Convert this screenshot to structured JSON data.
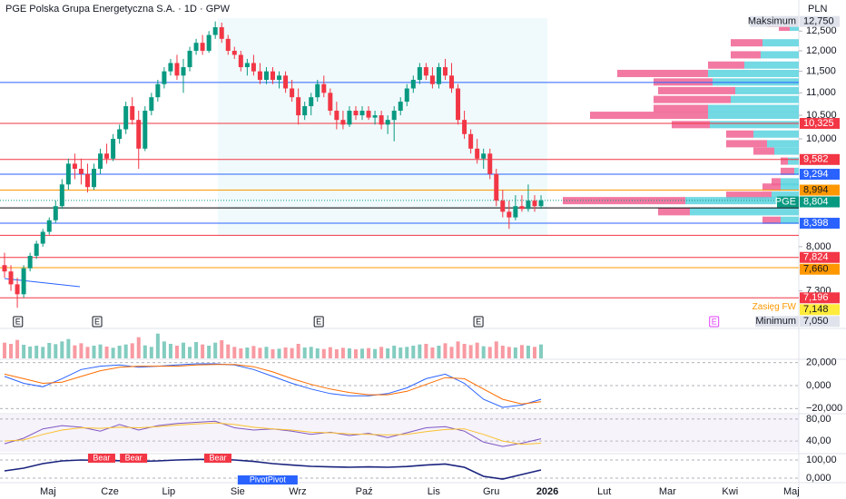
{
  "chart_data": {
    "type": "candlestick",
    "title": "PGE Polska Grupa Energetyczna S.A. · 1D · GPW",
    "currency": "PLN",
    "log_scale": true,
    "up_color": "#089981",
    "down_color": "#f23645",
    "xlim": [
      -0.71,
      124.36
    ],
    "xticks": [
      {
        "value": 6.8,
        "label": "Maj"
      },
      {
        "value": 16.5,
        "label": "Cze"
      },
      {
        "value": 25.7,
        "label": "Lip"
      },
      {
        "value": 36.5,
        "label": "Sie"
      },
      {
        "value": 45.9,
        "label": "Wrz"
      },
      {
        "value": 56.3,
        "label": "Paź"
      },
      {
        "value": 67.2,
        "label": "Lis"
      },
      {
        "value": 76.2,
        "label": "Gru"
      },
      {
        "value": 85,
        "label": "2026"
      },
      {
        "value": 93.9,
        "label": "Lut"
      },
      {
        "value": 103.8,
        "label": "Mar"
      },
      {
        "value": 113.6,
        "label": "Kwi"
      },
      {
        "value": 123.2,
        "label": "Maj"
      }
    ],
    "ylim": [
      6780,
      12960
    ],
    "yticks": [
      {
        "value": 12500,
        "label": "12,500"
      },
      {
        "value": 12000,
        "label": "12,000"
      },
      {
        "value": 11500,
        "label": "11,500"
      },
      {
        "value": 11000,
        "label": "11,000"
      },
      {
        "value": 10500,
        "label": "10,500"
      },
      {
        "value": 10000,
        "label": "10,000"
      },
      {
        "value": 8000,
        "label": "8,000"
      },
      {
        "value": 7300,
        "label": "7,300"
      }
    ],
    "ohlc": [
      [
        7700,
        7900,
        7500,
        7600
      ],
      [
        7600,
        7700,
        7300,
        7400
      ],
      [
        7400,
        7500,
        7050,
        7250
      ],
      [
        7250,
        7700,
        7200,
        7650
      ],
      [
        7650,
        7900,
        7600,
        7850
      ],
      [
        7850,
        8100,
        7800,
        8050
      ],
      [
        8050,
        8300,
        8000,
        8250
      ],
      [
        8250,
        8500,
        8200,
        8450
      ],
      [
        8450,
        8800,
        8400,
        8700
      ],
      [
        8700,
        9200,
        8650,
        9100
      ],
      [
        9100,
        9600,
        9000,
        9500
      ],
      [
        9500,
        9700,
        9200,
        9400
      ],
      [
        9400,
        9600,
        9100,
        9300
      ],
      [
        9300,
        9500,
        8950,
        9050
      ],
      [
        9050,
        9500,
        9000,
        9400
      ],
      [
        9400,
        9800,
        9300,
        9700
      ],
      [
        9700,
        9900,
        9500,
        9600
      ],
      [
        9600,
        10100,
        9550,
        10000
      ],
      [
        10000,
        10300,
        9900,
        10200
      ],
      [
        10200,
        10800,
        10100,
        10700
      ],
      [
        10700,
        10900,
        10300,
        10400
      ],
      [
        10400,
        10600,
        9400,
        9800
      ],
      [
        9800,
        10700,
        9750,
        10600
      ],
      [
        10600,
        11000,
        10500,
        10900
      ],
      [
        10900,
        11300,
        10800,
        11200
      ],
      [
        11200,
        11600,
        11100,
        11500
      ],
      [
        11500,
        11800,
        11400,
        11700
      ],
      [
        11700,
        11900,
        11300,
        11400
      ],
      [
        11400,
        11800,
        11000,
        11600
      ],
      [
        11600,
        12100,
        11500,
        12000
      ],
      [
        12000,
        12300,
        11900,
        12200
      ],
      [
        12200,
        12400,
        11900,
        12000
      ],
      [
        12000,
        12500,
        11950,
        12400
      ],
      [
        12400,
        12750,
        12300,
        12600
      ],
      [
        12600,
        12720,
        12200,
        12300
      ],
      [
        12300,
        12400,
        11900,
        12000
      ],
      [
        12000,
        12100,
        11800,
        11900
      ],
      [
        11900,
        12000,
        11500,
        11600
      ],
      [
        11600,
        11800,
        11400,
        11700
      ],
      [
        11700,
        11900,
        11400,
        11500
      ],
      [
        11500,
        11700,
        11200,
        11300
      ],
      [
        11300,
        11600,
        11200,
        11500
      ],
      [
        11500,
        11600,
        11200,
        11300
      ],
      [
        11300,
        11500,
        11100,
        11400
      ],
      [
        11400,
        11500,
        11000,
        11100
      ],
      [
        11100,
        11300,
        10800,
        10900
      ],
      [
        10900,
        11100,
        10300,
        10500
      ],
      [
        10500,
        10800,
        10400,
        10700
      ],
      [
        10700,
        11000,
        10500,
        10900
      ],
      [
        10900,
        11300,
        10800,
        11200
      ],
      [
        11200,
        11400,
        10900,
        11000
      ],
      [
        11000,
        11100,
        10500,
        10600
      ],
      [
        10600,
        10800,
        10200,
        10400
      ],
      [
        10400,
        10600,
        10200,
        10300
      ],
      [
        10300,
        10700,
        10250,
        10600
      ],
      [
        10600,
        10700,
        10400,
        10500
      ],
      [
        10500,
        10700,
        10400,
        10600
      ],
      [
        10600,
        10700,
        10400,
        10450
      ],
      [
        10450,
        10600,
        10300,
        10500
      ],
      [
        10500,
        10600,
        10200,
        10300
      ],
      [
        10300,
        10500,
        10100,
        10400
      ],
      [
        10400,
        10700,
        9950,
        10600
      ],
      [
        10600,
        10900,
        10500,
        10800
      ],
      [
        10800,
        11200,
        10700,
        11100
      ],
      [
        11100,
        11400,
        11000,
        11300
      ],
      [
        11300,
        11700,
        11200,
        11600
      ],
      [
        11600,
        11700,
        11300,
        11400
      ],
      [
        11400,
        11600,
        11100,
        11200
      ],
      [
        11200,
        11700,
        11100,
        11600
      ],
      [
        11600,
        11800,
        11300,
        11400
      ],
      [
        11400,
        11700,
        11000,
        11100
      ],
      [
        11100,
        11200,
        10300,
        10400
      ],
      [
        10400,
        10600,
        10000,
        10100
      ],
      [
        10100,
        10200,
        9700,
        9800
      ],
      [
        9800,
        10000,
        9500,
        9600
      ],
      [
        9600,
        9800,
        9400,
        9700
      ],
      [
        9700,
        9800,
        9200,
        9300
      ],
      [
        9300,
        9400,
        8700,
        8800
      ],
      [
        8800,
        9000,
        8500,
        8600
      ],
      [
        8600,
        8800,
        8300,
        8500
      ],
      [
        8500,
        8900,
        8450,
        8700
      ],
      [
        8700,
        8900,
        8600,
        8650
      ],
      [
        8650,
        9100,
        8600,
        8800
      ],
      [
        8800,
        8900,
        8600,
        8700
      ],
      [
        8700,
        8900,
        8650,
        8804
      ]
    ],
    "levels": [
      {
        "value": 12750,
        "label": "12,750",
        "tag": "Maksimum",
        "color": "#e0e3eb"
      },
      {
        "value": 11240,
        "color": "#2962ff",
        "line_style": "solid"
      },
      {
        "value": 10325,
        "label": "10,325",
        "color": "#f23645",
        "line_style": "solid"
      },
      {
        "value": 9582,
        "label": "9,582",
        "color": "#f23645",
        "line_style": "solid"
      },
      {
        "value": 9294,
        "label": "9,294",
        "color": "#2962ff",
        "line_style": "solid"
      },
      {
        "value": 8994,
        "label": "8,994",
        "color": "#ff9800",
        "line_style": "solid"
      },
      {
        "value": 8804,
        "label": "8,804",
        "tag": "PGE",
        "color": "#089981",
        "line_style": "dotted"
      },
      {
        "value": 8670,
        "color": "#000000",
        "line_style": "solid"
      },
      {
        "value": 8398,
        "label": "8,398",
        "color": "#2962ff",
        "line_style": "solid"
      },
      {
        "value": 8190,
        "color": "#f23645",
        "line_style": "solid"
      },
      {
        "value": 7824,
        "label": "7,824",
        "color": "#f23645",
        "line_style": "solid"
      },
      {
        "value": 7660,
        "label": "7,660",
        "color": "#ff9800",
        "line_style": "solid"
      },
      {
        "value": 7196,
        "label": "7,196",
        "color": "#f23645",
        "line_style": "solid"
      },
      {
        "value": 7148,
        "label": "7,148",
        "tag": "Zasięg FW",
        "color": "#ffeb3b"
      },
      {
        "value": 7050,
        "label": "7,050",
        "tag": "Minimum",
        "color": "#e0e3eb"
      }
    ],
    "earnings": [
      {
        "x": 2.1,
        "label": "E"
      },
      {
        "x": 14.5,
        "label": "E"
      },
      {
        "x": 49.2,
        "label": "E"
      },
      {
        "x": 74.2,
        "label": "E"
      },
      {
        "x": 111.1,
        "label": "E",
        "upcoming": true
      }
    ],
    "volume_profile": {
      "up_color": "#5ad2de",
      "down_color": "#f06292",
      "xlim": [
        0,
        260
      ],
      "prices": [
        12700,
        12600,
        12200,
        11900,
        11650,
        11450,
        11250,
        11050,
        10850,
        10650,
        10500,
        10300,
        10100,
        9900,
        9750,
        9550,
        9350,
        9150,
        9050,
        8900,
        8800,
        8600,
        8450
      ],
      "up": [
        18,
        10,
        40,
        42,
        60,
        100,
        95,
        70,
        75,
        100,
        100,
        98,
        50,
        35,
        27,
        12,
        5,
        20,
        20,
        30,
        125,
        120,
        20
      ],
      "down": [
        17,
        12,
        35,
        33,
        40,
        100,
        65,
        85,
        85,
        60,
        130,
        42,
        30,
        45,
        23,
        8,
        15,
        10,
        20,
        50,
        135,
        35,
        20
      ]
    },
    "volume": {
      "ylim": [
        0,
        900
      ],
      "values": [
        520,
        480,
        610,
        450,
        390,
        420,
        380,
        510,
        470,
        560,
        640,
        430,
        500,
        380,
        420,
        460,
        390,
        350,
        420,
        460,
        500,
        700,
        430,
        380,
        820,
        560,
        480,
        420,
        520,
        380,
        540,
        460,
        420,
        520,
        600,
        460,
        380,
        330,
        360,
        410,
        350,
        380,
        300,
        320,
        360,
        340,
        480,
        360,
        380,
        330,
        310,
        370,
        300,
        350,
        330,
        300,
        320,
        340,
        310,
        380,
        330,
        420,
        360,
        380,
        420,
        460,
        480,
        360,
        420,
        500,
        380,
        560,
        480,
        440,
        520,
        400,
        380,
        560,
        420,
        380,
        360,
        440,
        420,
        380,
        460
      ]
    },
    "macd": {
      "ylim": [
        -23000,
        23000
      ],
      "yticks": [
        {
          "value": 20000,
          "label": "20,000"
        },
        {
          "value": 0,
          "label": "0,000"
        },
        {
          "value": -20000,
          "label": "−20,000"
        }
      ],
      "x": [
        0,
        3,
        6,
        9,
        12,
        15,
        18,
        21,
        24,
        27,
        30,
        33,
        36,
        39,
        42,
        45,
        48,
        51,
        54,
        57,
        60,
        63,
        66,
        69,
        72,
        75,
        78,
        81,
        84
      ],
      "series": [
        {
          "color": "#2962ff",
          "values": [
            8000,
            2000,
            -1000,
            6000,
            14000,
            17000,
            18000,
            16000,
            17000,
            18000,
            19000,
            19000,
            18000,
            14000,
            8000,
            2000,
            -3000,
            -7000,
            -9000,
            -9000,
            -7000,
            -2000,
            6000,
            10000,
            2000,
            -12000,
            -19000,
            -17000,
            -12000
          ]
        },
        {
          "color": "#ff6d00",
          "values": [
            10000,
            6000,
            2000,
            3000,
            8000,
            13000,
            16000,
            17000,
            17000,
            17000,
            18000,
            18500,
            18500,
            16500,
            12000,
            6000,
            1000,
            -3000,
            -6000,
            -8000,
            -8000,
            -5000,
            1000,
            7000,
            6000,
            -3000,
            -12000,
            -16000,
            -14000
          ]
        }
      ]
    },
    "rsi": {
      "ylim": [
        17,
        88
      ],
      "yticks": [
        {
          "value": 80,
          "label": "80,00"
        },
        {
          "value": 40,
          "label": "40,00"
        }
      ],
      "x": [
        0,
        3,
        6,
        9,
        12,
        15,
        18,
        21,
        24,
        27,
        30,
        33,
        36,
        39,
        42,
        45,
        48,
        51,
        54,
        57,
        60,
        63,
        66,
        69,
        72,
        75,
        78,
        81,
        84
      ],
      "series": [
        {
          "color": "#7e57c2",
          "values": [
            35,
            45,
            62,
            68,
            65,
            58,
            70,
            60,
            68,
            72,
            74,
            76,
            64,
            60,
            62,
            58,
            52,
            56,
            50,
            54,
            46,
            55,
            64,
            66,
            58,
            38,
            30,
            36,
            44
          ]
        },
        {
          "color": "#fbc02d",
          "values": [
            40,
            42,
            52,
            60,
            64,
            63,
            65,
            64,
            66,
            69,
            71,
            73,
            70,
            65,
            62,
            60,
            56,
            55,
            53,
            52,
            51,
            52,
            57,
            61,
            62,
            52,
            40,
            34,
            36
          ]
        }
      ]
    },
    "oscillator": {
      "ylim": [
        -50,
        125
      ],
      "yticks": [
        {
          "value": 100,
          "label": "100,00"
        },
        {
          "value": 0,
          "label": "0,000"
        }
      ],
      "x": [
        0,
        3,
        6,
        9,
        12,
        15,
        18,
        21,
        24,
        27,
        30,
        33,
        36,
        39,
        42,
        45,
        48,
        51,
        54,
        57,
        60,
        63,
        66,
        69,
        72,
        75,
        78,
        81,
        84
      ],
      "series": [
        {
          "color": "#1a237e",
          "values": [
            40,
            55,
            80,
            95,
            100,
            98,
            96,
            92,
            95,
            100,
            103,
            104,
            100,
            92,
            80,
            72,
            65,
            62,
            60,
            62,
            60,
            64,
            72,
            78,
            60,
            10,
            -5,
            20,
            45
          ]
        }
      ],
      "annotations": [
        {
          "x": 15.2,
          "value": 100,
          "text": "Bear",
          "color": "#f23645"
        },
        {
          "x": 20.2,
          "value": 100,
          "text": "Bear",
          "color": "#f23645"
        },
        {
          "x": 33.4,
          "value": 100,
          "text": "Bear",
          "color": "#f23645"
        },
        {
          "x": 41.2,
          "value": 0,
          "text": "PivotPivot",
          "color": "#2962ff"
        }
      ]
    }
  }
}
